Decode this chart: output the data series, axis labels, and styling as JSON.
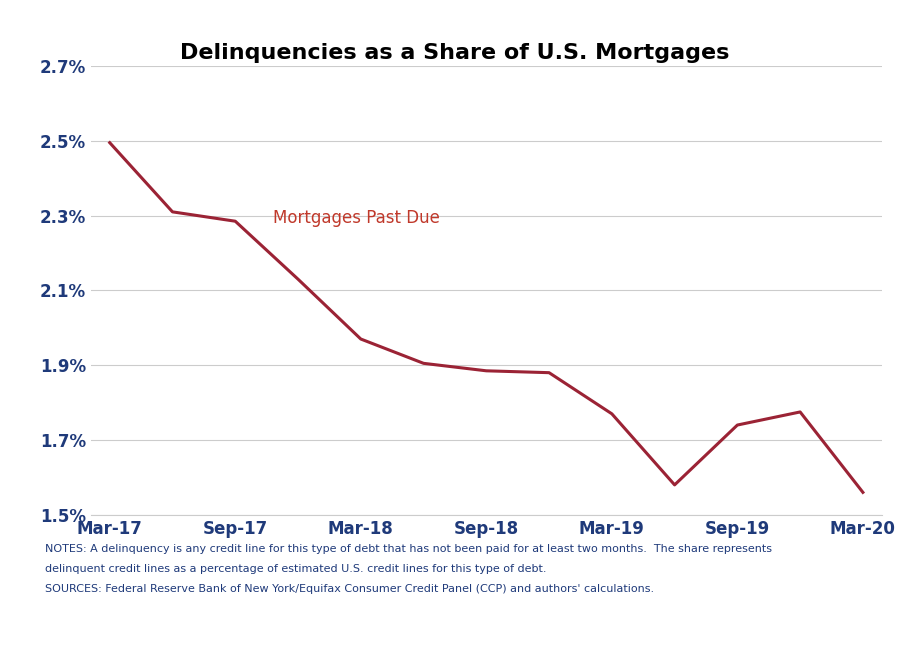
{
  "title": "Delinquencies as a Share of U.S. Mortgages",
  "line_label": "Mortgages Past Due",
  "line_color": "#9B2335",
  "x_labels": [
    "Mar-17",
    "Sep-17",
    "Mar-18",
    "Sep-18",
    "Mar-19",
    "Sep-19",
    "Mar-20"
  ],
  "x_values": [
    0,
    1,
    2,
    3,
    4,
    5,
    6,
    7,
    8,
    9,
    10,
    11,
    12
  ],
  "y_values": [
    2.495,
    2.31,
    2.285,
    2.13,
    1.97,
    1.905,
    1.885,
    1.88,
    1.77,
    1.58,
    1.74,
    1.775,
    1.56
  ],
  "ylim": [
    1.5,
    2.7
  ],
  "yticks": [
    1.5,
    1.7,
    1.9,
    2.1,
    2.3,
    2.5,
    2.7
  ],
  "notes_line1": "NOTES: A delinquency is any credit line for this type of debt that has not been paid for at least two months.  The share represents",
  "notes_line2": "delinquent credit lines as a percentage of estimated U.S. credit lines for this type of debt.",
  "sources_line": "SOURCES: Federal Reserve Bank of New York/Equifax Consumer Credit Panel (CCP) and authors' calculations.",
  "footer_bg": "#1C3A5E",
  "footer_text_color": "#FFFFFF",
  "background_color": "#FFFFFF",
  "grid_color": "#CCCCCC",
  "tick_label_color": "#1F3A7A",
  "notes_color": "#1F3A7A",
  "label_annotation_color": "#C0392B"
}
